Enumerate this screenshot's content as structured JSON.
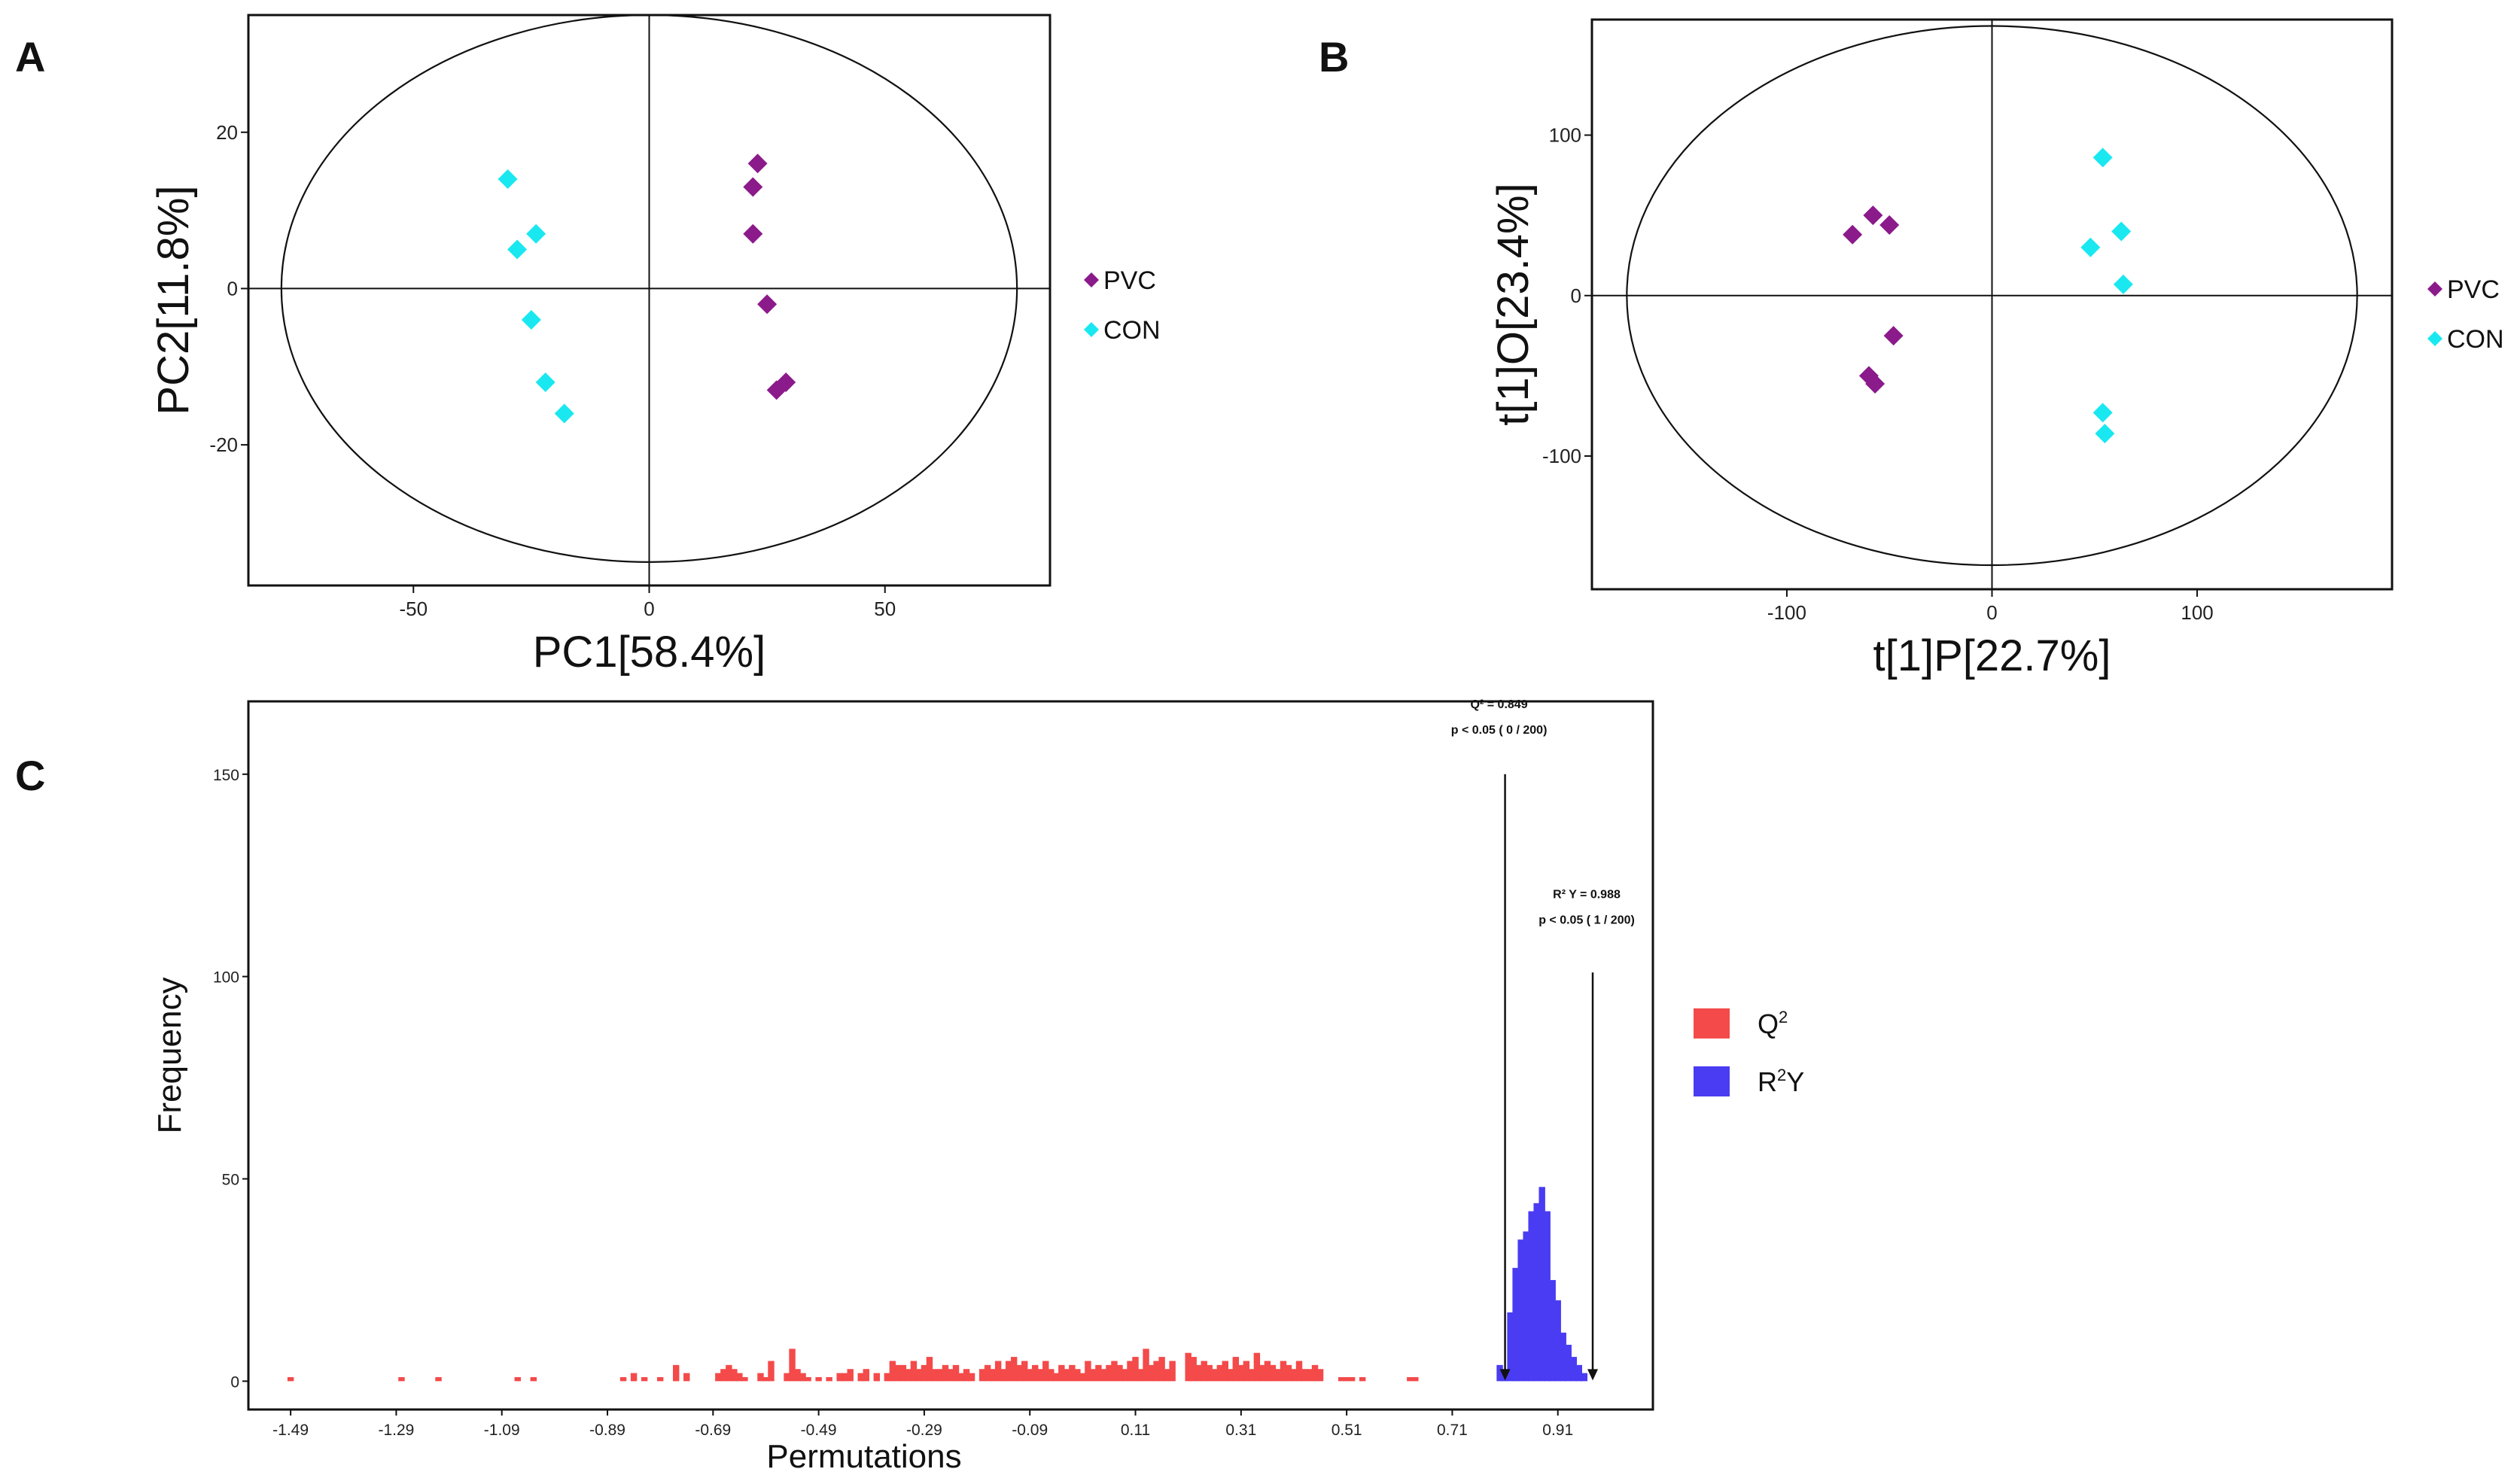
{
  "panels": {
    "a": "A",
    "b": "B",
    "c": "C"
  },
  "chart_data": [
    {
      "type": "scatter",
      "panel": "A",
      "xlabel": "PC1[58.4%]",
      "ylabel": "PC2[11.8%]",
      "xlim": [
        -85,
        85
      ],
      "ylim": [
        -38,
        35
      ],
      "xticks": [
        -50,
        0,
        50
      ],
      "yticks": [
        -20,
        0,
        20
      ],
      "ellipse": {
        "rx": 78,
        "ry": 35
      },
      "legend": [
        "PVC",
        "CON"
      ],
      "colors": {
        "PVC": "#8b1a8b",
        "CON": "#19e8f0"
      },
      "series": [
        {
          "name": "PVC",
          "points": [
            [
              23,
              16
            ],
            [
              22,
              13
            ],
            [
              22,
              7
            ],
            [
              25,
              -2
            ],
            [
              29,
              -12
            ],
            [
              27,
              -13
            ]
          ]
        },
        {
          "name": "CON",
          "points": [
            [
              -30,
              14
            ],
            [
              -24,
              7
            ],
            [
              -28,
              5
            ],
            [
              -25,
              -4
            ],
            [
              -22,
              -12
            ],
            [
              -18,
              -16
            ]
          ]
        }
      ]
    },
    {
      "type": "scatter",
      "panel": "B",
      "xlabel": "t[1]P[22.7%]",
      "ylabel": "t[1]O[23.4%]",
      "xlim": [
        -195,
        195
      ],
      "ylim": [
        -183,
        172
      ],
      "xticks": [
        -100,
        0,
        100
      ],
      "yticks": [
        -100,
        0,
        100
      ],
      "ellipse": {
        "rx": 178,
        "ry": 168
      },
      "legend": [
        "PVC",
        "CON"
      ],
      "colors": {
        "PVC": "#8b1a8b",
        "CON": "#19e8f0"
      },
      "series": [
        {
          "name": "PVC",
          "points": [
            [
              -58,
              50
            ],
            [
              -50,
              44
            ],
            [
              -68,
              38
            ],
            [
              -48,
              -25
            ],
            [
              -60,
              -50
            ],
            [
              -57,
              -55
            ]
          ]
        },
        {
          "name": "CON",
          "points": [
            [
              54,
              86
            ],
            [
              63,
              40
            ],
            [
              48,
              30
            ],
            [
              64,
              7
            ],
            [
              54,
              -73
            ],
            [
              55,
              -86
            ]
          ]
        }
      ]
    },
    {
      "type": "bar",
      "panel": "C",
      "xlabel": "Permutations",
      "ylabel": "Frequency",
      "xlim": [
        -1.57,
        1.09
      ],
      "ylim": [
        -7,
        168
      ],
      "xticks": [
        "-1.49",
        "-1.29",
        "-1.09",
        "-0.89",
        "-0.69",
        "-0.49",
        "-0.29",
        "-0.09",
        "0.11",
        "0.31",
        "0.51",
        "0.71",
        "0.91"
      ],
      "yticks": [
        0,
        50,
        100,
        150
      ],
      "colors": {
        "Q2": "#f44a4a",
        "R2Y": "#4a3cf2"
      },
      "legend": [
        {
          "base": "Q",
          "sup": "2"
        },
        {
          "base": "R",
          "sup": "2",
          "tail": "Y"
        }
      ],
      "bin_width": 0.012,
      "series": [
        {
          "name": "Q2",
          "bins": [
            [
              -1.49,
              1
            ],
            [
              -1.28,
              1
            ],
            [
              -1.21,
              1
            ],
            [
              -1.06,
              1
            ],
            [
              -1.03,
              1
            ],
            [
              -0.86,
              1
            ],
            [
              -0.84,
              2
            ],
            [
              -0.82,
              1
            ],
            [
              -0.79,
              1
            ],
            [
              -0.76,
              4
            ],
            [
              -0.74,
              2
            ],
            [
              -0.68,
              2
            ],
            [
              -0.67,
              3
            ],
            [
              -0.66,
              4
            ],
            [
              -0.65,
              3
            ],
            [
              -0.64,
              2
            ],
            [
              -0.63,
              1
            ],
            [
              -0.6,
              2
            ],
            [
              -0.59,
              1
            ],
            [
              -0.58,
              5
            ],
            [
              -0.55,
              2
            ],
            [
              -0.54,
              8
            ],
            [
              -0.53,
              3
            ],
            [
              -0.52,
              2
            ],
            [
              -0.51,
              1
            ],
            [
              -0.49,
              1
            ],
            [
              -0.47,
              1
            ],
            [
              -0.45,
              2
            ],
            [
              -0.44,
              2
            ],
            [
              -0.43,
              3
            ],
            [
              -0.41,
              2
            ],
            [
              -0.4,
              3
            ],
            [
              -0.38,
              2
            ],
            [
              -0.36,
              2
            ],
            [
              -0.35,
              5
            ],
            [
              -0.34,
              4
            ],
            [
              -0.33,
              4
            ],
            [
              -0.32,
              3
            ],
            [
              -0.31,
              5
            ],
            [
              -0.3,
              3
            ],
            [
              -0.29,
              4
            ],
            [
              -0.28,
              6
            ],
            [
              -0.27,
              3
            ],
            [
              -0.26,
              3
            ],
            [
              -0.25,
              4
            ],
            [
              -0.24,
              3
            ],
            [
              -0.23,
              4
            ],
            [
              -0.22,
              2
            ],
            [
              -0.21,
              3
            ],
            [
              -0.2,
              2
            ],
            [
              -0.18,
              3
            ],
            [
              -0.17,
              4
            ],
            [
              -0.16,
              3
            ],
            [
              -0.15,
              5
            ],
            [
              -0.14,
              3
            ],
            [
              -0.13,
              5
            ],
            [
              -0.12,
              6
            ],
            [
              -0.11,
              4
            ],
            [
              -0.1,
              5
            ],
            [
              -0.09,
              3
            ],
            [
              -0.08,
              4
            ],
            [
              -0.07,
              3
            ],
            [
              -0.06,
              5
            ],
            [
              -0.05,
              3
            ],
            [
              -0.04,
              2
            ],
            [
              -0.03,
              4
            ],
            [
              -0.02,
              3
            ],
            [
              -0.01,
              4
            ],
            [
              0.0,
              3
            ],
            [
              0.01,
              2
            ],
            [
              0.02,
              5
            ],
            [
              0.03,
              3
            ],
            [
              0.04,
              4
            ],
            [
              0.05,
              3
            ],
            [
              0.06,
              4
            ],
            [
              0.07,
              5
            ],
            [
              0.08,
              4
            ],
            [
              0.09,
              3
            ],
            [
              0.1,
              5
            ],
            [
              0.11,
              6
            ],
            [
              0.12,
              3
            ],
            [
              0.13,
              8
            ],
            [
              0.14,
              4
            ],
            [
              0.15,
              5
            ],
            [
              0.16,
              6
            ],
            [
              0.17,
              3
            ],
            [
              0.18,
              5
            ],
            [
              0.21,
              7
            ],
            [
              0.22,
              6
            ],
            [
              0.23,
              4
            ],
            [
              0.24,
              5
            ],
            [
              0.25,
              4
            ],
            [
              0.26,
              3
            ],
            [
              0.27,
              4
            ],
            [
              0.28,
              5
            ],
            [
              0.29,
              3
            ],
            [
              0.3,
              6
            ],
            [
              0.31,
              4
            ],
            [
              0.32,
              5
            ],
            [
              0.33,
              3
            ],
            [
              0.34,
              7
            ],
            [
              0.35,
              4
            ],
            [
              0.36,
              5
            ],
            [
              0.37,
              4
            ],
            [
              0.38,
              3
            ],
            [
              0.39,
              5
            ],
            [
              0.4,
              4
            ],
            [
              0.41,
              3
            ],
            [
              0.42,
              5
            ],
            [
              0.43,
              3
            ],
            [
              0.44,
              3
            ],
            [
              0.45,
              4
            ],
            [
              0.46,
              3
            ],
            [
              0.5,
              1
            ],
            [
              0.51,
              1
            ],
            [
              0.52,
              1
            ],
            [
              0.54,
              1
            ],
            [
              0.63,
              1
            ],
            [
              0.64,
              1
            ]
          ]
        },
        {
          "name": "R2Y",
          "bins": [
            [
              0.8,
              4
            ],
            [
              0.81,
              3
            ],
            [
              0.82,
              17
            ],
            [
              0.83,
              28
            ],
            [
              0.84,
              35
            ],
            [
              0.85,
              37
            ],
            [
              0.86,
              42
            ],
            [
              0.87,
              44
            ],
            [
              0.88,
              48
            ],
            [
              0.89,
              42
            ],
            [
              0.9,
              25
            ],
            [
              0.91,
              20
            ],
            [
              0.92,
              12
            ],
            [
              0.93,
              9
            ],
            [
              0.94,
              6
            ],
            [
              0.95,
              4
            ],
            [
              0.96,
              2
            ]
          ]
        }
      ],
      "annotations": [
        {
          "label": "Q² = 0.849",
          "detail": "p < 0.05 ( 0 / 200)",
          "x": 0.81,
          "y_text": 160,
          "y_top": 150
        },
        {
          "label": "R² Y = 0.988",
          "detail": "p < 0.05 ( 1 / 200)",
          "x": 0.976,
          "y_text": 113,
          "y_top": 101
        }
      ]
    }
  ]
}
